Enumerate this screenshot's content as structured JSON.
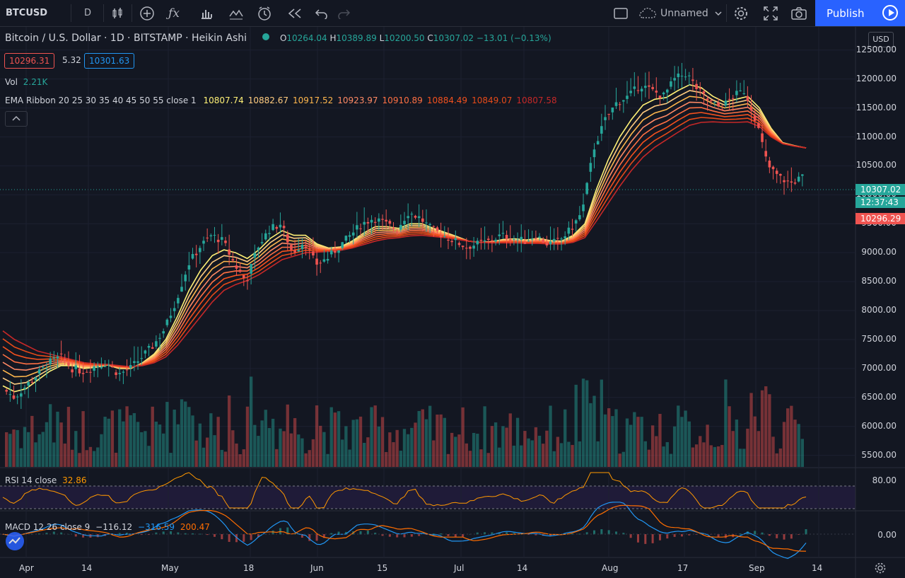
{
  "toolbar": {
    "symbol": "BTCUSD",
    "interval": "D",
    "layout_name": "Unnamed",
    "publish_label": "Publish"
  },
  "legend": {
    "title": "Bitcoin / U.S. Dollar · 1D · BITSTAMP · Heikin Ashi",
    "o_label": "O",
    "o_value": "10264.04",
    "h_label": "H",
    "h_value": "10389.89",
    "l_label": "L",
    "l_value": "10200.50",
    "c_label": "C",
    "c_value": "10307.02",
    "change": "−13.01 (−0.13%)",
    "bid": "10296.31",
    "spread": "5.32",
    "ask": "10301.63",
    "vol_label": "Vol",
    "vol_value": "2.21K",
    "ema_label": "EMA Ribbon 20 25 30 35 40 45 50 55 close 1",
    "ema_values": [
      "10807.74",
      "10882.67",
      "10917.52",
      "10923.97",
      "10910.89",
      "10884.49",
      "10849.07",
      "10807.58"
    ],
    "ema_colors": [
      "#fff176",
      "#ffcc80",
      "#ffb74d",
      "#ff8a65",
      "#ff7043",
      "#f4511e",
      "#e64a19",
      "#c62828"
    ]
  },
  "rsi": {
    "label": "RSI 14 close",
    "value": "32.86",
    "level": "80.00"
  },
  "macd": {
    "label": "MACD 12 26 close 9",
    "v1": "−116.12",
    "v2": "−316.59",
    "v3": "200.47",
    "level": "0.00"
  },
  "price_axis": {
    "currency": "USD",
    "ticks": [
      "12500.00",
      "12000.00",
      "11500.00",
      "11000.00",
      "10500.00",
      "10000.00",
      "9500.00",
      "9000.00",
      "8500.00",
      "8000.00",
      "7500.00",
      "7000.00",
      "6500.00",
      "6000.00",
      "5500.00"
    ],
    "last_price": "10307.02",
    "countdown": "12:37:43",
    "bid_tag": "10296.29"
  },
  "time_axis": [
    "Apr",
    "14",
    "May",
    "18",
    "Jun",
    "15",
    "Jul",
    "14",
    "Aug",
    "17",
    "Sep",
    "14"
  ],
  "colors": {
    "up": "#26a69a",
    "down": "#ef5350",
    "bg": "#131722",
    "grid": "#1f2330",
    "accent": "#2962ff"
  },
  "chart_data": {
    "type": "candlestick",
    "title": "Bitcoin / U.S. Dollar · 1D · BITSTAMP · Heikin Ashi",
    "x_ticks": [
      "Apr",
      "14",
      "May",
      "18",
      "Jun",
      "15",
      "Jul",
      "14",
      "Aug",
      "17",
      "Sep",
      "14"
    ],
    "y_range": [
      5300,
      12900
    ],
    "close_path": [
      6650,
      6500,
      6700,
      6900,
      7100,
      7200,
      7000,
      6950,
      7050,
      7100,
      6900,
      7000,
      7200,
      7400,
      7700,
      8200,
      8800,
      9100,
      9300,
      9200,
      8800,
      8500,
      9100,
      9400,
      9500,
      9000,
      9200,
      8800,
      8900,
      9100,
      9300,
      9500,
      9600,
      9500,
      9400,
      9700,
      9600,
      9400,
      9300,
      9200,
      9100,
      9150,
      9200,
      9300,
      9250,
      9200,
      9300,
      9150,
      9200,
      9400,
      9700,
      10800,
      11300,
      11600,
      11700,
      11900,
      11800,
      11700,
      12000,
      12100,
      11800,
      11600,
      11500,
      11700,
      11800,
      11300,
      10500,
      10300,
      10200,
      10300
    ],
    "ema_fast_path": [
      6700,
      6600,
      6650,
      6800,
      6950,
      7050,
      7050,
      7000,
      7020,
      7060,
      7000,
      7000,
      7100,
      7250,
      7500,
      7900,
      8350,
      8700,
      8950,
      9050,
      9000,
      8900,
      9050,
      9250,
      9380,
      9300,
      9300,
      9150,
      9080,
      9100,
      9200,
      9340,
      9450,
      9450,
      9420,
      9500,
      9500,
      9420,
      9350,
      9280,
      9200,
      9180,
      9190,
      9230,
      9240,
      9220,
      9250,
      9210,
      9200,
      9300,
      9500,
      10100,
      10600,
      11000,
      11300,
      11550,
      11650,
      11680,
      11800,
      11900,
      11850,
      11700,
      11600,
      11650,
      11700,
      11500,
      11150,
      10900,
      10850,
      10810
    ],
    "ema_slow_path": [
      7650,
      7500,
      7400,
      7300,
      7250,
      7200,
      7150,
      7100,
      7080,
      7070,
      7050,
      7030,
      7050,
      7100,
      7200,
      7400,
      7650,
      7900,
      8150,
      8350,
      8450,
      8520,
      8620,
      8750,
      8880,
      8940,
      9000,
      9010,
      9020,
      9040,
      9080,
      9140,
      9200,
      9240,
      9260,
      9290,
      9300,
      9280,
      9260,
      9230,
      9200,
      9180,
      9170,
      9170,
      9170,
      9160,
      9160,
      9150,
      9150,
      9180,
      9260,
      9550,
      9850,
      10150,
      10420,
      10650,
      10820,
      10950,
      11080,
      11200,
      11250,
      11260,
      11250,
      11250,
      11260,
      11180,
      11000,
      10880,
      10840,
      10810
    ]
  }
}
